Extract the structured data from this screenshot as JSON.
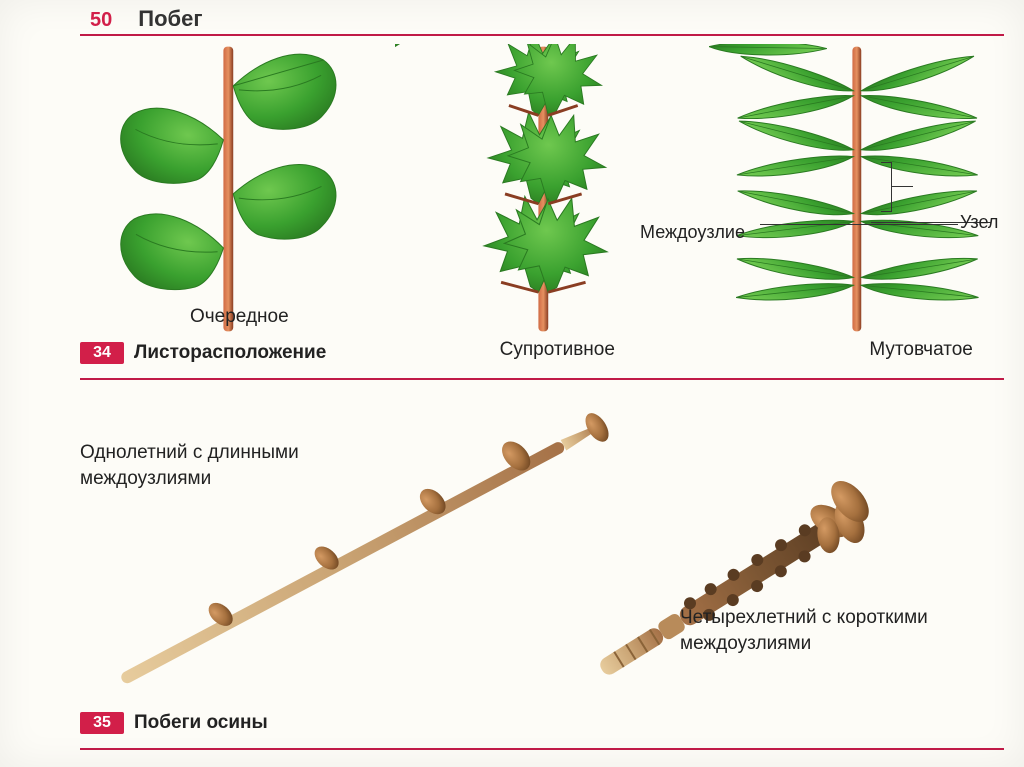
{
  "page_number": "50",
  "header_title": "Побег",
  "figure_top": {
    "badge": "34",
    "caption": "Листорасположение",
    "plants": {
      "alternate": {
        "label": "Очередное"
      },
      "opposite": {
        "label": "Супротивное"
      },
      "whorled": {
        "label": "Мутовчатое"
      }
    },
    "annotations": {
      "internode": "Междоузлие",
      "node": "Узел"
    }
  },
  "figure_bottom": {
    "badge": "35",
    "caption": "Побеги осины",
    "twigs": {
      "long": {
        "label": "Однолетний с длинными\nмеждоузлиями"
      },
      "short": {
        "label": "Четырехлетний с короткими\nмеждоузлиями"
      }
    }
  },
  "colors": {
    "accent": "#d21f49",
    "stem_light": "#d06a44",
    "stem_dark": "#8a3d22",
    "leaf_main": "#3aa12f",
    "leaf_dark": "#2a7a21",
    "leaf_light": "#6fc84f",
    "twig_light": "#c9a373",
    "twig_mid": "#a57147",
    "twig_dark": "#6b4a2d",
    "bud": "#b77b4a",
    "bud_dark": "#7c4c26",
    "text": "#222222",
    "background": "#fdfcf7"
  }
}
